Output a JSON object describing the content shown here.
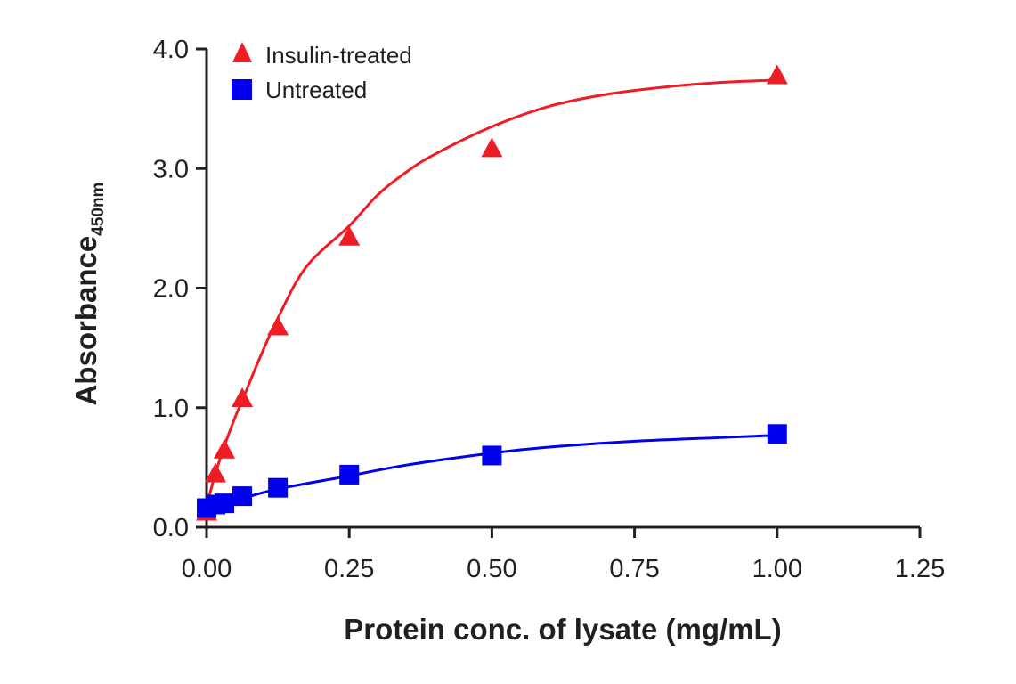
{
  "chart_data": {
    "type": "scatter",
    "title": "",
    "xlabel": "Protein conc. of lysate (mg/mL)",
    "ylabel": "Absorbance",
    "ylabel_subscript": "450nm",
    "xlim": [
      0,
      1.25
    ],
    "ylim": [
      0,
      4.0
    ],
    "x_ticks": [
      0,
      0.25,
      0.5,
      0.75,
      1.0,
      1.25
    ],
    "x_tick_labels": [
      "0.00",
      "0.25",
      "0.50",
      "0.75",
      "1.00",
      "1.25"
    ],
    "y_ticks": [
      0,
      1,
      2,
      3,
      4
    ],
    "y_tick_labels": [
      "0.0",
      "1.0",
      "2.0",
      "3.0",
      "4.0"
    ],
    "grid": false,
    "legend_position": "top-left",
    "series": [
      {
        "name": "Insulin-treated",
        "color": "#ee1c24",
        "marker": "triangle",
        "x": [
          0,
          0.0156,
          0.03125,
          0.0625,
          0.125,
          0.25,
          0.5,
          1.0
        ],
        "y": [
          0.13,
          0.45,
          0.65,
          1.08,
          1.68,
          2.43,
          3.17,
          3.78
        ],
        "fit_x": [
          0,
          0.0156,
          0.03125,
          0.05,
          0.0625,
          0.09,
          0.125,
          0.175,
          0.25,
          0.3,
          0.35,
          0.4,
          0.5,
          0.6,
          0.7,
          0.8,
          0.9,
          1.0
        ],
        "fit_y": [
          0.18,
          0.45,
          0.68,
          0.92,
          1.06,
          1.38,
          1.75,
          2.18,
          2.52,
          2.78,
          2.97,
          3.12,
          3.35,
          3.52,
          3.62,
          3.68,
          3.72,
          3.74
        ]
      },
      {
        "name": "Untreated",
        "color": "#0000ee",
        "marker": "square",
        "x": [
          0,
          0.0156,
          0.03125,
          0.0625,
          0.125,
          0.25,
          0.5,
          1.0
        ],
        "y": [
          0.16,
          0.19,
          0.2,
          0.26,
          0.33,
          0.44,
          0.6,
          0.78
        ],
        "fit_x": [
          0,
          0.0156,
          0.03125,
          0.0625,
          0.125,
          0.25,
          0.35,
          0.5,
          0.6,
          0.75,
          0.9,
          1.0
        ],
        "fit_y": [
          0.13,
          0.17,
          0.19,
          0.24,
          0.32,
          0.43,
          0.52,
          0.62,
          0.67,
          0.72,
          0.75,
          0.77
        ]
      }
    ]
  }
}
